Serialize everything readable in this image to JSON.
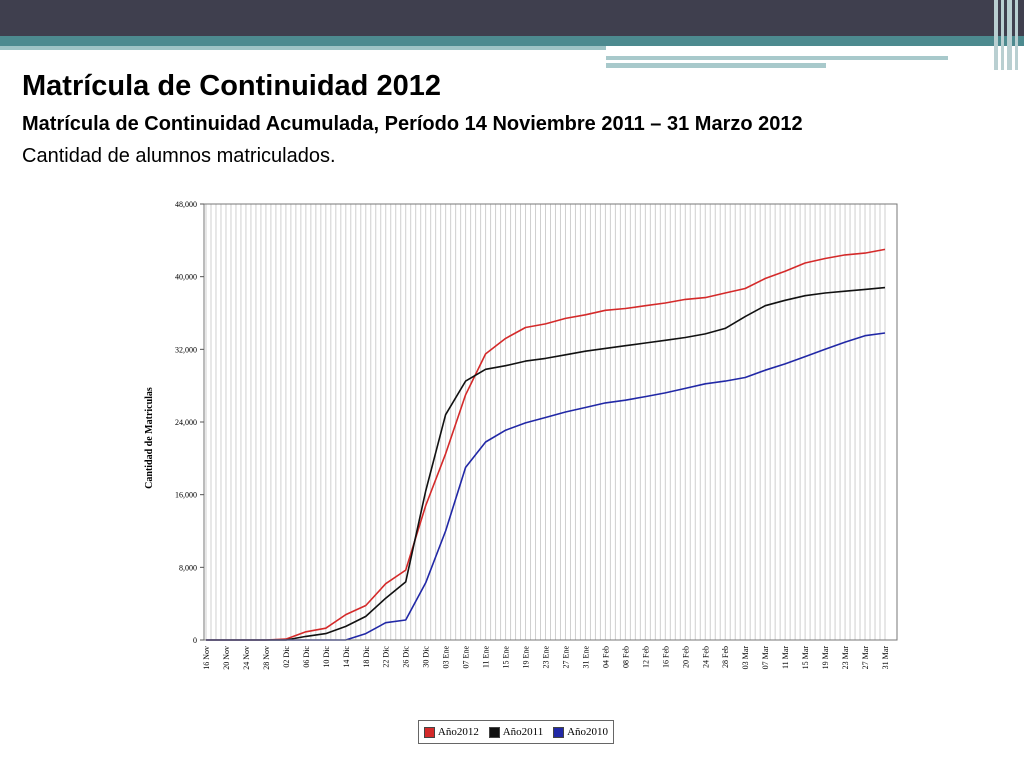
{
  "slide": {
    "title": "Matrícula de Continuidad 2012",
    "subtitle": "Matrícula de Continuidad Acumulada, Período 14 Noviembre 2011 – 31 Marzo 2012",
    "caption": "Cantidad de alumnos matriculados."
  },
  "chart_data": {
    "type": "line",
    "title": "",
    "xlabel": "",
    "ylabel": "Cantidad de Matriculas",
    "ylim": [
      0,
      48000
    ],
    "yticks": [
      0,
      8000,
      16000,
      24000,
      32000,
      40000,
      48000
    ],
    "ytick_labels": [
      "0",
      "8,000",
      "16,000",
      "24,000",
      "32,000",
      "40,000",
      "48,000"
    ],
    "xtick_labels": [
      "16 Nov",
      "20 Nov",
      "24 Nov",
      "28 Nov",
      "02 Dic",
      "06 Dic",
      "10 Dic",
      "14 Dic",
      "18 Dic",
      "22 Dic",
      "26 Dic",
      "30 Dic",
      "03 Ene",
      "07 Ene",
      "11 Ene",
      "15 Ene",
      "19 Ene",
      "23 Ene",
      "27 Ene",
      "31 Ene",
      "04 Feb",
      "08 Feb",
      "12 Feb",
      "16 Feb",
      "20 Feb",
      "24 Feb",
      "28 Feb",
      "03 Mar",
      "07 Mar",
      "11 Mar",
      "15 Mar",
      "19 Mar",
      "23 Mar",
      "27 Mar",
      "31 Mar"
    ],
    "x": [
      "16 Nov",
      "20 Nov",
      "24 Nov",
      "28 Nov",
      "02 Dic",
      "06 Dic",
      "10 Dic",
      "14 Dic",
      "18 Dic",
      "22 Dic",
      "26 Dic",
      "30 Dic",
      "03 Ene",
      "07 Ene",
      "11 Ene",
      "15 Ene",
      "19 Ene",
      "23 Ene",
      "27 Ene",
      "31 Ene",
      "04 Feb",
      "08 Feb",
      "12 Feb",
      "16 Feb",
      "20 Feb",
      "24 Feb",
      "28 Feb",
      "03 Mar",
      "07 Mar",
      "11 Mar",
      "15 Mar",
      "19 Mar",
      "23 Mar",
      "27 Mar",
      "31 Mar"
    ],
    "grid": "vertical",
    "legend_position": "bottom-center",
    "series": [
      {
        "name": "Año2012",
        "color": "#d42a2a",
        "values": [
          0,
          0,
          0,
          0,
          100,
          900,
          1300,
          2800,
          3800,
          6200,
          7700,
          14800,
          20500,
          27000,
          31500,
          33200,
          34400,
          34800,
          35400,
          35800,
          36300,
          36500,
          36800,
          37100,
          37500,
          37700,
          38200,
          38700,
          39800,
          40600,
          41500,
          42000,
          42400,
          42600,
          43000
        ]
      },
      {
        "name": "Año2011",
        "color": "#111111",
        "values": [
          0,
          0,
          0,
          0,
          0,
          400,
          700,
          1500,
          2600,
          4600,
          6400,
          16400,
          24800,
          28500,
          29800,
          30200,
          30700,
          31000,
          31400,
          31800,
          32100,
          32400,
          32700,
          33000,
          33300,
          33700,
          34300,
          35600,
          36800,
          37400,
          37900,
          38200,
          38400,
          38600,
          38800
        ]
      },
      {
        "name": "Año2010",
        "color": "#2128a6",
        "values": [
          0,
          0,
          0,
          0,
          0,
          0,
          0,
          0,
          700,
          1900,
          2200,
          6300,
          12000,
          19000,
          21800,
          23100,
          23900,
          24500,
          25100,
          25600,
          26100,
          26400,
          26800,
          27200,
          27700,
          28200,
          28500,
          28900,
          29700,
          30400,
          31200,
          32000,
          32800,
          33500,
          33800
        ]
      }
    ]
  }
}
